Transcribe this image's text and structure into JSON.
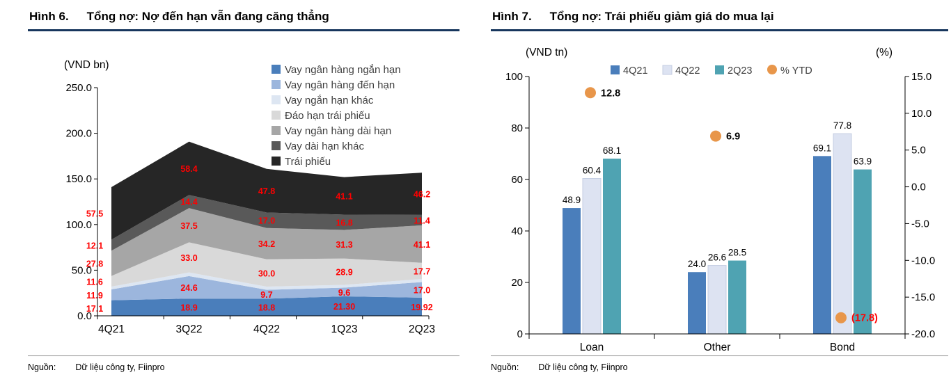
{
  "accent": {
    "header_underline": "#17365d",
    "label_red": "#ff0000",
    "legend_text": "#404040"
  },
  "left_panel": {
    "figure_label": "Hình 6.",
    "title": "Tổng nợ: Nợ đến hạn vẫn đang căng thẳng",
    "source_label": "Nguồn:",
    "source_text": "Dữ liệu công ty, Fiinpro"
  },
  "right_panel": {
    "figure_label": "Hình 7.",
    "title": "Tổng nợ: Trái phiếu giảm giá do mua lại",
    "source_label": "Nguồn:",
    "source_text": "Dữ liệu công ty, Fiinpro"
  },
  "chart_data": [
    {
      "type": "area",
      "stacked": true,
      "title": "Hình 6. Tổng nợ: Nợ đến hạn vẫn đang căng thẳng",
      "axis_title": "(VND bn)",
      "categories": [
        "4Q21",
        "3Q22",
        "4Q22",
        "1Q23",
        "2Q23"
      ],
      "ylim": [
        0,
        250
      ],
      "yticks": [
        "250.0",
        "200.0",
        "150.0",
        "100.0",
        "50.0",
        "0.0"
      ],
      "label_color": "#ff0000",
      "legend_position": "top-right",
      "grid": false,
      "series": [
        {
          "name": "Vay ngân hàng ngắn hạn",
          "color": "#4a7ebb",
          "values": [
            17.1,
            18.9,
            18.8,
            21.3,
            19.92
          ],
          "labels": [
            "17.1",
            "18.9",
            "18.8",
            "21.30",
            "19.92"
          ]
        },
        {
          "name": "Vay ngân hàng đến hạn",
          "color": "#9cb6dd",
          "values": [
            11.9,
            24.6,
            9.7,
            9.6,
            17.0
          ],
          "labels": [
            "11.9",
            "24.6",
            "9.7",
            "9.6",
            "17.0"
          ]
        },
        {
          "name": "Vay ngắn hạn khác",
          "color": "#dde6f2",
          "values": [
            3.0,
            4.0,
            3.5,
            3.0,
            3.5
          ],
          "labels": null
        },
        {
          "name": "Đáo hạn trái phiếu",
          "color": "#d9d9d9",
          "values": [
            11.6,
            33.0,
            30.0,
            28.9,
            17.7
          ],
          "labels": [
            "11.6",
            "33.0",
            "30.0",
            "28.9",
            "17.7"
          ]
        },
        {
          "name": "Vay ngân hàng dài hạn",
          "color": "#a6a6a6",
          "values": [
            27.8,
            37.5,
            34.2,
            31.3,
            41.1
          ],
          "labels": [
            "27.8",
            "37.5",
            "34.2",
            "31.3",
            "41.1"
          ]
        },
        {
          "name": "Vay dài hạn khác",
          "color": "#595959",
          "values": [
            12.1,
            14.4,
            17.0,
            16.8,
            11.4
          ],
          "labels": [
            "12.1",
            "14.4",
            "17.0",
            "16.8",
            "11.4"
          ]
        },
        {
          "name": "Trái phiếu",
          "color": "#262626",
          "values": [
            57.5,
            58.4,
            47.8,
            41.1,
            46.2
          ],
          "labels": [
            "57.5",
            "58.4",
            "47.8",
            "41.1",
            "46.2"
          ]
        }
      ]
    },
    {
      "type": "bar",
      "title": "Hình 7. Tổng nợ: Trái phiếu giảm giá do mua lại",
      "axis_title_left": "(VND tn)",
      "axis_title_right": "(%)",
      "categories": [
        "Loan",
        "Other",
        "Bond"
      ],
      "ylim_left": [
        0,
        100
      ],
      "yticks_left": [
        "100",
        "80",
        "60",
        "40",
        "20",
        "0"
      ],
      "ylim_right": [
        -20,
        15
      ],
      "yticks_right": [
        "15.0",
        "10.0",
        "5.0",
        "0.0",
        "-5.0",
        "-10.0",
        "-15.0",
        "-20.0"
      ],
      "grid": false,
      "legend_position": "top",
      "series": [
        {
          "name": "4Q21",
          "color": "#4a7ebb",
          "border": "none",
          "values": [
            48.9,
            24.0,
            69.1
          ],
          "labels": [
            "48.9",
            "24.0",
            "69.1"
          ]
        },
        {
          "name": "4Q22",
          "color": "#dde3f2",
          "border": "#c4cde2",
          "values": [
            60.4,
            26.6,
            77.8
          ],
          "labels": [
            "60.4",
            "26.6",
            "77.8"
          ]
        },
        {
          "name": "2Q23",
          "color": "#4fa3b2",
          "border": "none",
          "values": [
            68.1,
            28.5,
            63.9
          ],
          "labels": [
            "68.1",
            "28.5",
            "63.9"
          ]
        }
      ],
      "dot_series": {
        "name": "% YTD",
        "color": "#e8964a",
        "axis": "right",
        "values": [
          12.8,
          6.9,
          -17.8
        ],
        "labels": [
          "12.8",
          "6.9",
          "(17.8)"
        ],
        "label_colors": [
          "#000000",
          "#000000",
          "#ff0000"
        ]
      }
    }
  ]
}
